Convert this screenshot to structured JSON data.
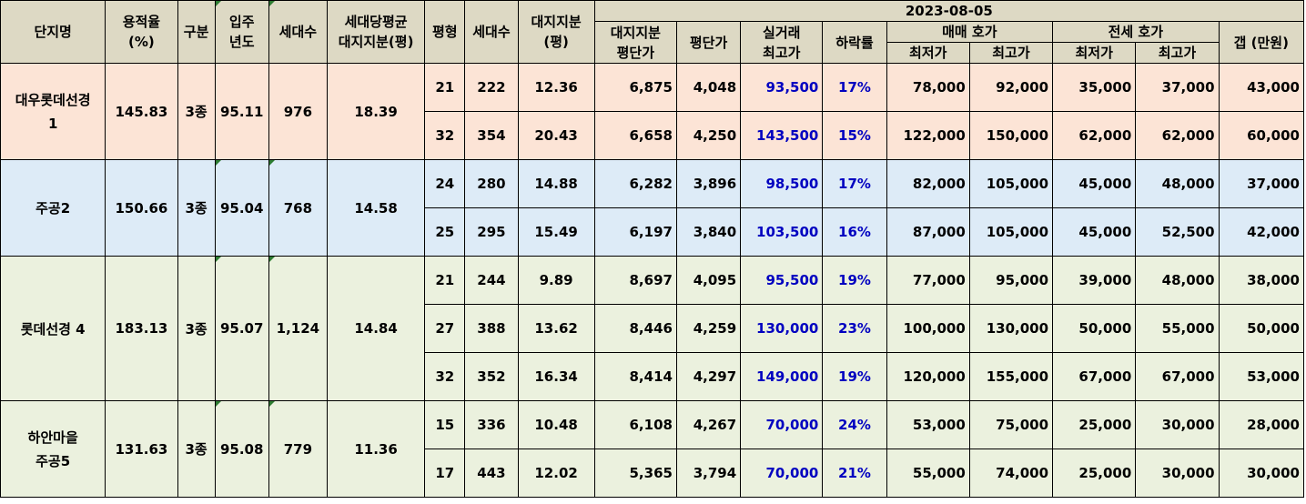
{
  "header": {
    "complex_name": "단지명",
    "far": "용적율\n(%)",
    "zone": "구분",
    "year": "입주\n년도",
    "households": "세대수",
    "avg_land": "세대당평균\n대지지분(평)",
    "pyeong": "평형",
    "unit_households": "세대수",
    "land_share": "대지지분\n(평)",
    "date": "2023-08-05",
    "land_price": "대지지분\n평단가",
    "price_per_pyeong": "평단가",
    "max_trade": "실거래\n최고가",
    "drop_rate": "하락률",
    "sale_ask": "매매 호가",
    "jeonse_ask": "전세 호가",
    "min": "최저가",
    "max": "최고가",
    "gap": "갭 (만원)"
  },
  "groups": [
    {
      "name": "대우롯데선경\n1",
      "far": "145.83",
      "zone": "3종",
      "year": "95.11",
      "households": "976",
      "avg_land": "18.39",
      "rows": [
        {
          "pyeong": "21",
          "hh": "222",
          "land": "12.36",
          "land_price": "6,875",
          "ppp": "4,048",
          "max_trade": "93,500",
          "drop": "17%",
          "sale_min": "78,000",
          "sale_max": "92,000",
          "j_min": "35,000",
          "j_max": "37,000",
          "gap": "43,000"
        },
        {
          "pyeong": "32",
          "hh": "354",
          "land": "20.43",
          "land_price": "6,658",
          "ppp": "4,250",
          "max_trade": "143,500",
          "drop": "15%",
          "sale_min": "122,000",
          "sale_max": "150,000",
          "j_min": "62,000",
          "j_max": "62,000",
          "gap": "60,000"
        }
      ]
    },
    {
      "name": "주공2",
      "far": "150.66",
      "zone": "3종",
      "year": "95.04",
      "households": "768",
      "avg_land": "14.58",
      "rows": [
        {
          "pyeong": "24",
          "hh": "280",
          "land": "14.88",
          "land_price": "6,282",
          "ppp": "3,896",
          "max_trade": "98,500",
          "drop": "17%",
          "sale_min": "82,000",
          "sale_max": "105,000",
          "j_min": "45,000",
          "j_max": "48,000",
          "gap": "37,000"
        },
        {
          "pyeong": "25",
          "hh": "295",
          "land": "15.49",
          "land_price": "6,197",
          "ppp": "3,840",
          "max_trade": "103,500",
          "drop": "16%",
          "sale_min": "87,000",
          "sale_max": "105,000",
          "j_min": "45,000",
          "j_max": "52,500",
          "gap": "42,000"
        }
      ]
    },
    {
      "name": "롯데선경 4",
      "far": "183.13",
      "zone": "3종",
      "year": "95.07",
      "households": "1,124",
      "avg_land": "14.84",
      "rows": [
        {
          "pyeong": "21",
          "hh": "244",
          "land": "9.89",
          "land_price": "8,697",
          "ppp": "4,095",
          "max_trade": "95,500",
          "drop": "19%",
          "sale_min": "77,000",
          "sale_max": "95,000",
          "j_min": "39,000",
          "j_max": "48,000",
          "gap": "38,000"
        },
        {
          "pyeong": "27",
          "hh": "388",
          "land": "13.62",
          "land_price": "8,446",
          "ppp": "4,259",
          "max_trade": "130,000",
          "drop": "23%",
          "sale_min": "100,000",
          "sale_max": "130,000",
          "j_min": "50,000",
          "j_max": "55,000",
          "gap": "50,000"
        },
        {
          "pyeong": "32",
          "hh": "352",
          "land": "16.34",
          "land_price": "8,414",
          "ppp": "4,297",
          "max_trade": "149,000",
          "drop": "19%",
          "sale_min": "120,000",
          "sale_max": "155,000",
          "j_min": "67,000",
          "j_max": "67,000",
          "gap": "53,000"
        }
      ]
    },
    {
      "name": "하안마을\n주공5",
      "far": "131.63",
      "zone": "3종",
      "year": "95.08",
      "households": "779",
      "avg_land": "11.36",
      "rows": [
        {
          "pyeong": "15",
          "hh": "336",
          "land": "10.48",
          "land_price": "6,108",
          "ppp": "4,267",
          "max_trade": "70,000",
          "drop": "24%",
          "sale_min": "53,000",
          "sale_max": "75,000",
          "j_min": "25,000",
          "j_max": "30,000",
          "gap": "28,000"
        },
        {
          "pyeong": "17",
          "hh": "443",
          "land": "12.02",
          "land_price": "5,365",
          "ppp": "3,794",
          "max_trade": "70,000",
          "drop": "21%",
          "sale_min": "55,000",
          "sale_max": "74,000",
          "j_min": "25,000",
          "j_max": "30,000",
          "gap": "30,000"
        }
      ]
    }
  ]
}
